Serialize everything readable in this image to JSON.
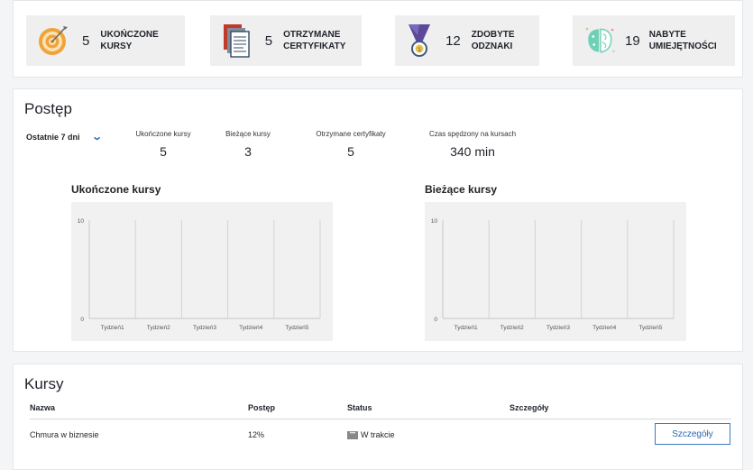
{
  "stats": [
    {
      "value": "5",
      "label": "UKOŃCZONE KURSY",
      "icon": "target-icon"
    },
    {
      "value": "5",
      "label": "OTRZYMANE CERTYFIKATY",
      "icon": "certificate-icon"
    },
    {
      "value": "12",
      "label": "ZDOBYTE ODZNAKI",
      "icon": "medal-icon"
    },
    {
      "value": "19",
      "label": "NABYTE UMIEJĘTNOŚCI",
      "icon": "brain-icon"
    }
  ],
  "progress": {
    "title": "Postęp",
    "range_select": "Ostatnie 7 dni",
    "metrics": [
      {
        "label": "Ukończone kursy",
        "value": "5"
      },
      {
        "label": "Bieżące kursy",
        "value": "3"
      },
      {
        "label": "Otrzymane certyfikaty",
        "value": "5"
      },
      {
        "label": "Czas spędzony na kursach",
        "value": "340 min"
      }
    ]
  },
  "chart_data": [
    {
      "type": "bar",
      "title": "Ukończone kursy",
      "categories": [
        "Tydzień1",
        "Tydzień2",
        "Tydzień3",
        "Tydzień4",
        "Tydzień5"
      ],
      "values": [
        0,
        0,
        0,
        0,
        0
      ],
      "ylim": [
        0,
        10
      ],
      "yticks": [
        "0",
        "10"
      ],
      "grid": "vertical"
    },
    {
      "type": "bar",
      "title": "Bieżące kursy",
      "categories": [
        "Tydzień1",
        "Tydzień2",
        "Tydzień3",
        "Tydzień4",
        "Tydzień5"
      ],
      "values": [
        0,
        0,
        0,
        0,
        0
      ],
      "ylim": [
        0,
        10
      ],
      "yticks": [
        "0",
        "10"
      ],
      "grid": "vertical"
    }
  ],
  "courses": {
    "title": "Kursy",
    "headers": {
      "name": "Nazwa",
      "progress": "Postęp",
      "status": "Status",
      "details": "Szczegóły"
    },
    "rows": [
      {
        "name": "Chmura w biznesie",
        "progress": "12%",
        "status_icon": "•••",
        "status": "W trakcie",
        "button": "Szczegóły"
      }
    ]
  },
  "colors": {
    "accent": "#3a77c2",
    "card_bg": "#efefef",
    "plot_bg": "#f1f1f1"
  }
}
